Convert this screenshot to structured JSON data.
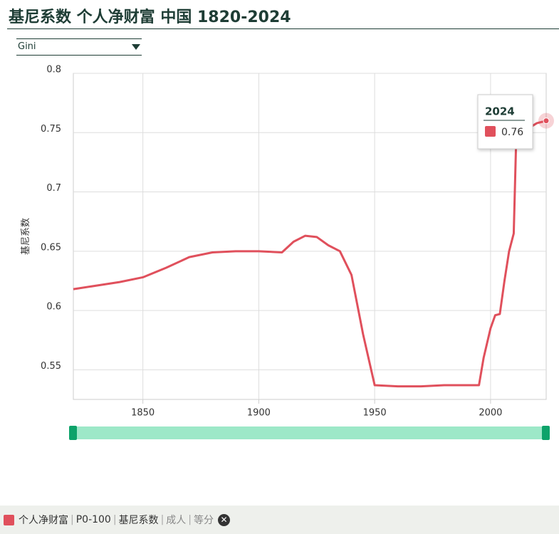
{
  "chart_data": {
    "type": "line",
    "title": "基尼系数 个人净财富 中国 1820-2024",
    "dropdown": "Gini",
    "y_label": "基尼系数",
    "x": [
      1820,
      1830,
      1840,
      1850,
      1860,
      1870,
      1880,
      1890,
      1900,
      1910,
      1915,
      1920,
      1925,
      1930,
      1935,
      1940,
      1945,
      1950,
      1960,
      1970,
      1980,
      1990,
      1995,
      1997,
      2000,
      2002,
      2004,
      2006,
      2008,
      2010,
      2011,
      2012,
      2015,
      2020,
      2024
    ],
    "series": [
      {
        "name": "个人净财富",
        "color": "#e0505c",
        "values": [
          0.618,
          0.621,
          0.624,
          0.628,
          0.636,
          0.645,
          0.649,
          0.65,
          0.65,
          0.649,
          0.658,
          0.663,
          0.662,
          0.655,
          0.65,
          0.63,
          0.58,
          0.537,
          0.536,
          0.536,
          0.537,
          0.537,
          0.537,
          0.56,
          0.585,
          0.596,
          0.597,
          0.625,
          0.65,
          0.665,
          0.74,
          0.752,
          0.752,
          0.758,
          0.76
        ]
      }
    ],
    "xlim": [
      1820,
      2024
    ],
    "ylim": [
      0.525,
      0.8
    ],
    "xticks": [
      1850,
      1900,
      1950,
      2000
    ],
    "yticks": [
      0.55,
      0.6,
      0.65,
      0.7,
      0.75,
      0.8
    ],
    "grid": true,
    "filters": [
      "P0-100",
      "基尼系数",
      "成人",
      "等分"
    ]
  }
}
